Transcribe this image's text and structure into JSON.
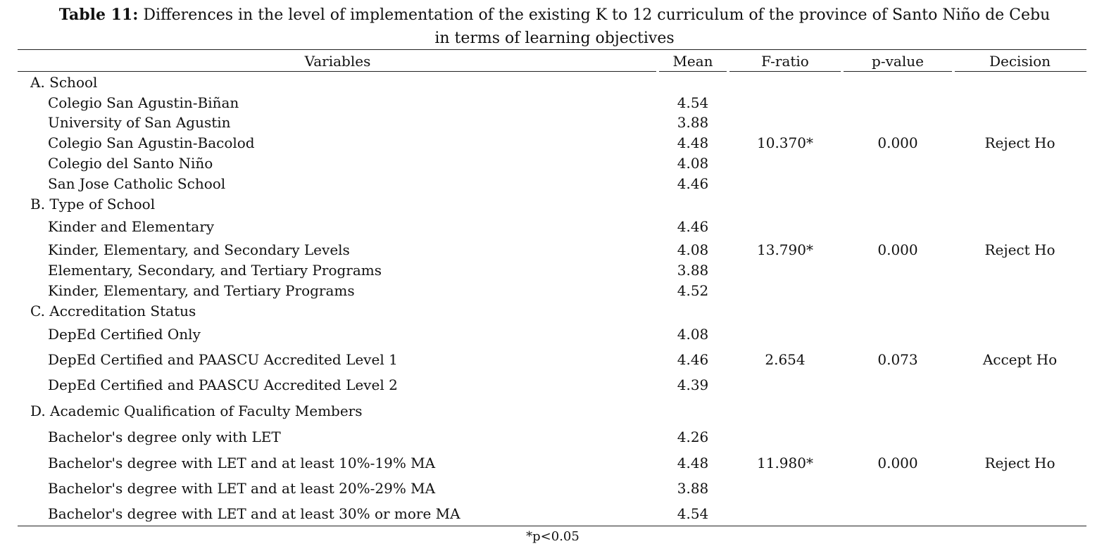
{
  "caption": {
    "lead": "Table 11:",
    "line1": "Differences in the level of implementation of the existing K to 12 curriculum of the province of Santo Niño de Cebu",
    "line2": "in terms of learning objectives"
  },
  "headers": {
    "variables": "Variables",
    "mean": "Mean",
    "f_ratio": "F-ratio",
    "p_value": "p-value",
    "decision": "Decision"
  },
  "groups": [
    {
      "label": "A. School",
      "items": [
        {
          "label": "Colegio San Agustin-Biñan",
          "mean": "4.54"
        },
        {
          "label": "University of San Agustin",
          "mean": "3.88"
        },
        {
          "label": "Colegio San Agustin-Bacolod",
          "mean": "4.48"
        },
        {
          "label": "Colegio del Santo Niño",
          "mean": "4.08"
        },
        {
          "label": "San Jose Catholic School",
          "mean": "4.46"
        }
      ],
      "f_ratio": "10.370*",
      "p_value": "0.000",
      "decision": "Reject Ho"
    },
    {
      "label": "B. Type of School",
      "items": [
        {
          "label": "Kinder and Elementary",
          "mean": "4.46"
        },
        {
          "label": "Kinder, Elementary, and Secondary Levels",
          "mean": "4.08"
        },
        {
          "label": "Elementary, Secondary, and Tertiary Programs",
          "mean": "3.88"
        },
        {
          "label": "Kinder, Elementary, and Tertiary Programs",
          "mean": "4.52"
        }
      ],
      "f_ratio": "13.790*",
      "p_value": "0.000",
      "decision": "Reject Ho"
    },
    {
      "label": "C. Accreditation Status",
      "items": [
        {
          "label": "DepEd Certified Only",
          "mean": "4.08"
        },
        {
          "label": "DepEd Certified and PAASCU Accredited Level 1",
          "mean": "4.46"
        },
        {
          "label": "DepEd Certified and PAASCU Accredited Level 2",
          "mean": "4.39"
        }
      ],
      "f_ratio": "2.654",
      "p_value": "0.073",
      "decision": "Accept Ho"
    },
    {
      "label": "D. Academic Qualification of Faculty Members",
      "items": [
        {
          "label": "Bachelor's degree only with LET",
          "mean": "4.26"
        },
        {
          "label": "Bachelor's degree with LET and at least 10%-19% MA",
          "mean": "4.48"
        },
        {
          "label": "Bachelor's degree with LET and at least 20%-29% MA",
          "mean": "3.88"
        },
        {
          "label": "Bachelor's degree with LET and at least 30% or more MA",
          "mean": "4.54"
        }
      ],
      "f_ratio": "11.980*",
      "p_value": "0.000",
      "decision": "Reject Ho"
    }
  ],
  "footnote": "*p<0.05"
}
